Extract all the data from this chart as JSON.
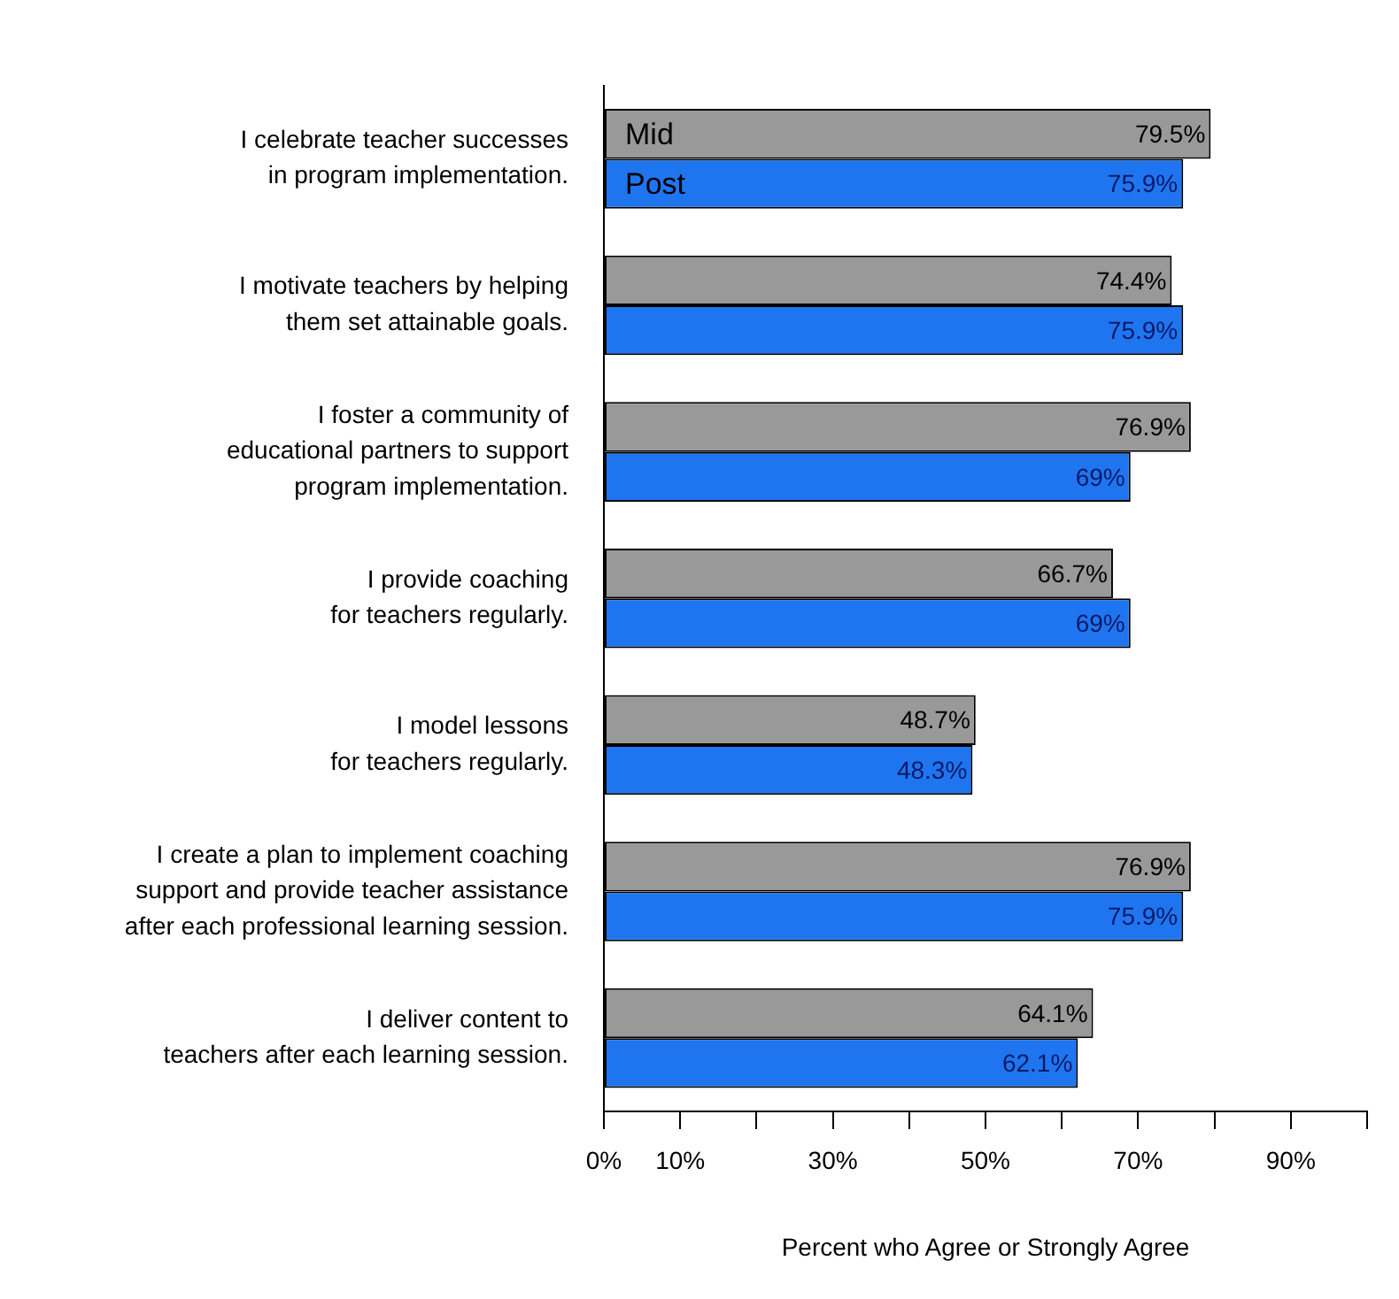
{
  "chart_data": {
    "type": "bar",
    "orientation": "horizontal",
    "xlabel": "Percent who Agree or Strongly Agree",
    "categories": [
      "I celebrate teacher successes\nin program implementation.",
      "I motivate teachers by helping\nthem set attainable goals.",
      "I foster a community of\neducational partners to support\nprogram implementation.",
      "I provide coaching\nfor teachers regularly.",
      "I model lessons\nfor teachers regularly.",
      "I create a plan to implement coaching\nsupport and provide teacher assistance\nafter each professional learning session.",
      "I deliver content to\nteachers after each learning session."
    ],
    "series": [
      {
        "name": "Mid",
        "color": "#999999",
        "values": [
          79.5,
          74.4,
          76.9,
          66.7,
          48.7,
          76.9,
          64.1
        ],
        "value_labels": [
          "79.5%",
          "74.4%",
          "76.9%",
          "66.7%",
          "48.7%",
          "76.9%",
          "64.1%"
        ]
      },
      {
        "name": "Post",
        "color": "#1f75f0",
        "values": [
          75.9,
          75.9,
          69,
          69,
          48.3,
          75.9,
          62.1
        ],
        "value_labels": [
          "75.9%",
          "75.9%",
          "69%",
          "69%",
          "48.3%",
          "75.9%",
          "62.1%"
        ]
      }
    ],
    "xlim": [
      0,
      100
    ],
    "xticks": [
      {
        "value": 0,
        "label": "0%"
      },
      {
        "value": 10,
        "label": "10%"
      },
      {
        "value": 20,
        "label": null
      },
      {
        "value": 30,
        "label": "30%"
      },
      {
        "value": 40,
        "label": null
      },
      {
        "value": 50,
        "label": "50%"
      },
      {
        "value": 60,
        "label": null
      },
      {
        "value": 70,
        "label": "70%"
      },
      {
        "value": 80,
        "label": null
      },
      {
        "value": 90,
        "label": "90%"
      },
      {
        "value": 100,
        "label": null
      }
    ],
    "legend": "top left",
    "grid": false
  }
}
